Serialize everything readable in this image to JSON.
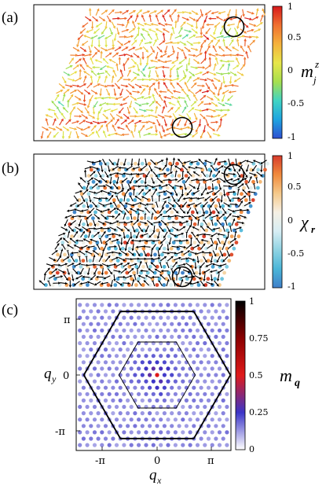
{
  "figure": {
    "panels": [
      {
        "label": "(a)",
        "colorbar": {
          "label_main": "m",
          "label_sup": "z",
          "label_sub": "j",
          "ticks": [
            "1",
            "0.5",
            "0",
            "-0.5",
            "-1"
          ],
          "colors": [
            "#d7191c",
            "#f07030",
            "#f5b23c",
            "#e7e64a",
            "#a6df4e",
            "#41d4c3",
            "#1ea4e0",
            "#2d4fd1"
          ]
        }
      },
      {
        "label": "(b)",
        "colorbar": {
          "label_main": "χ",
          "label_sub": "r",
          "ticks": [
            "1",
            "0.5",
            "0",
            "-0.5",
            "-1"
          ],
          "colors": [
            "#d73b2c",
            "#f08a3c",
            "#f5c98a",
            "#f6f0e4",
            "#d7eef4",
            "#8fd3e3",
            "#4bb6d8",
            "#3f7fc9"
          ]
        }
      },
      {
        "label": "(c)",
        "chart_data": {
          "type": "heatmap",
          "xlabel": "q",
          "xlabel_sub": "x",
          "ylabel": "q",
          "ylabel_sub": "y",
          "xticks": [
            "-π",
            "0",
            "π"
          ],
          "yticks": [
            "π",
            "0",
            "-π"
          ],
          "xlim": [
            -4.2,
            4.2
          ],
          "ylim": [
            -4.2,
            4.2
          ],
          "peak": {
            "q": [
              0,
              0
            ],
            "m": 1.0
          },
          "background_m": 0.05,
          "colorbar": {
            "label_main": "m",
            "label_sub": "q",
            "ticks": [
              "1",
              "0.75",
              "0.5",
              "0.25",
              "0"
            ],
            "colors": [
              "#000000",
              "#8b0000",
              "#e01a1a",
              "#3b35c8",
              "#ffffff"
            ]
          }
        }
      }
    ]
  }
}
